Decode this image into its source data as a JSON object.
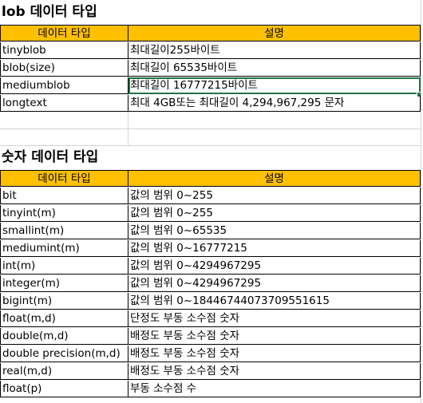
{
  "lob": {
    "title": "lob 데이터 타입",
    "header": {
      "type": "데이터 타입",
      "desc": "설명"
    },
    "rows": [
      {
        "type": "tinyblob",
        "desc": "최대길이255바이트"
      },
      {
        "type": "blob(size)",
        "desc": "최대길이 65535바이트"
      },
      {
        "type": "mediumblob",
        "desc": "최대길이 16777215바이트"
      },
      {
        "type": "longtext",
        "desc": "최대 4GB또는 최대길이 4,294,967,295 문자"
      }
    ]
  },
  "numeric": {
    "title": "숫자 데이터 타입",
    "header": {
      "type": "데이터 타입",
      "desc": "설명"
    },
    "rows": [
      {
        "type": "bit",
        "desc": "값의 범위 0~255"
      },
      {
        "type": "tinyint(m)",
        "desc": "값의 범위 0~255"
      },
      {
        "type": "smallint(m)",
        "desc": "값의 범위 0~65535"
      },
      {
        "type": "mediumint(m)",
        "desc": "값의 범위 0~16777215"
      },
      {
        "type": "int(m)",
        "desc": "값의 범위 0~4294967295"
      },
      {
        "type": "integer(m)",
        "desc": "값의 범위 0~4294967295"
      },
      {
        "type": "bigint(m)",
        "desc": "값의 범위 0~18446744073709551615"
      },
      {
        "type": "float(m,d)",
        "desc": "단정도 부동 소수점 숫자"
      },
      {
        "type": "double(m,d)",
        "desc": "배정도 부동 소수점 숫자"
      },
      {
        "type": "double precision(m,d)",
        "desc": "배정도 부동 소수점 숫자"
      },
      {
        "type": "real(m,d)",
        "desc": "배정도 부동 소수점 숫자"
      },
      {
        "type": "float(p)",
        "desc": "부동 소수점 수"
      }
    ]
  },
  "colors": {
    "header": "#ffc000",
    "selection": "#217346",
    "grid": "#d4d4d4"
  }
}
